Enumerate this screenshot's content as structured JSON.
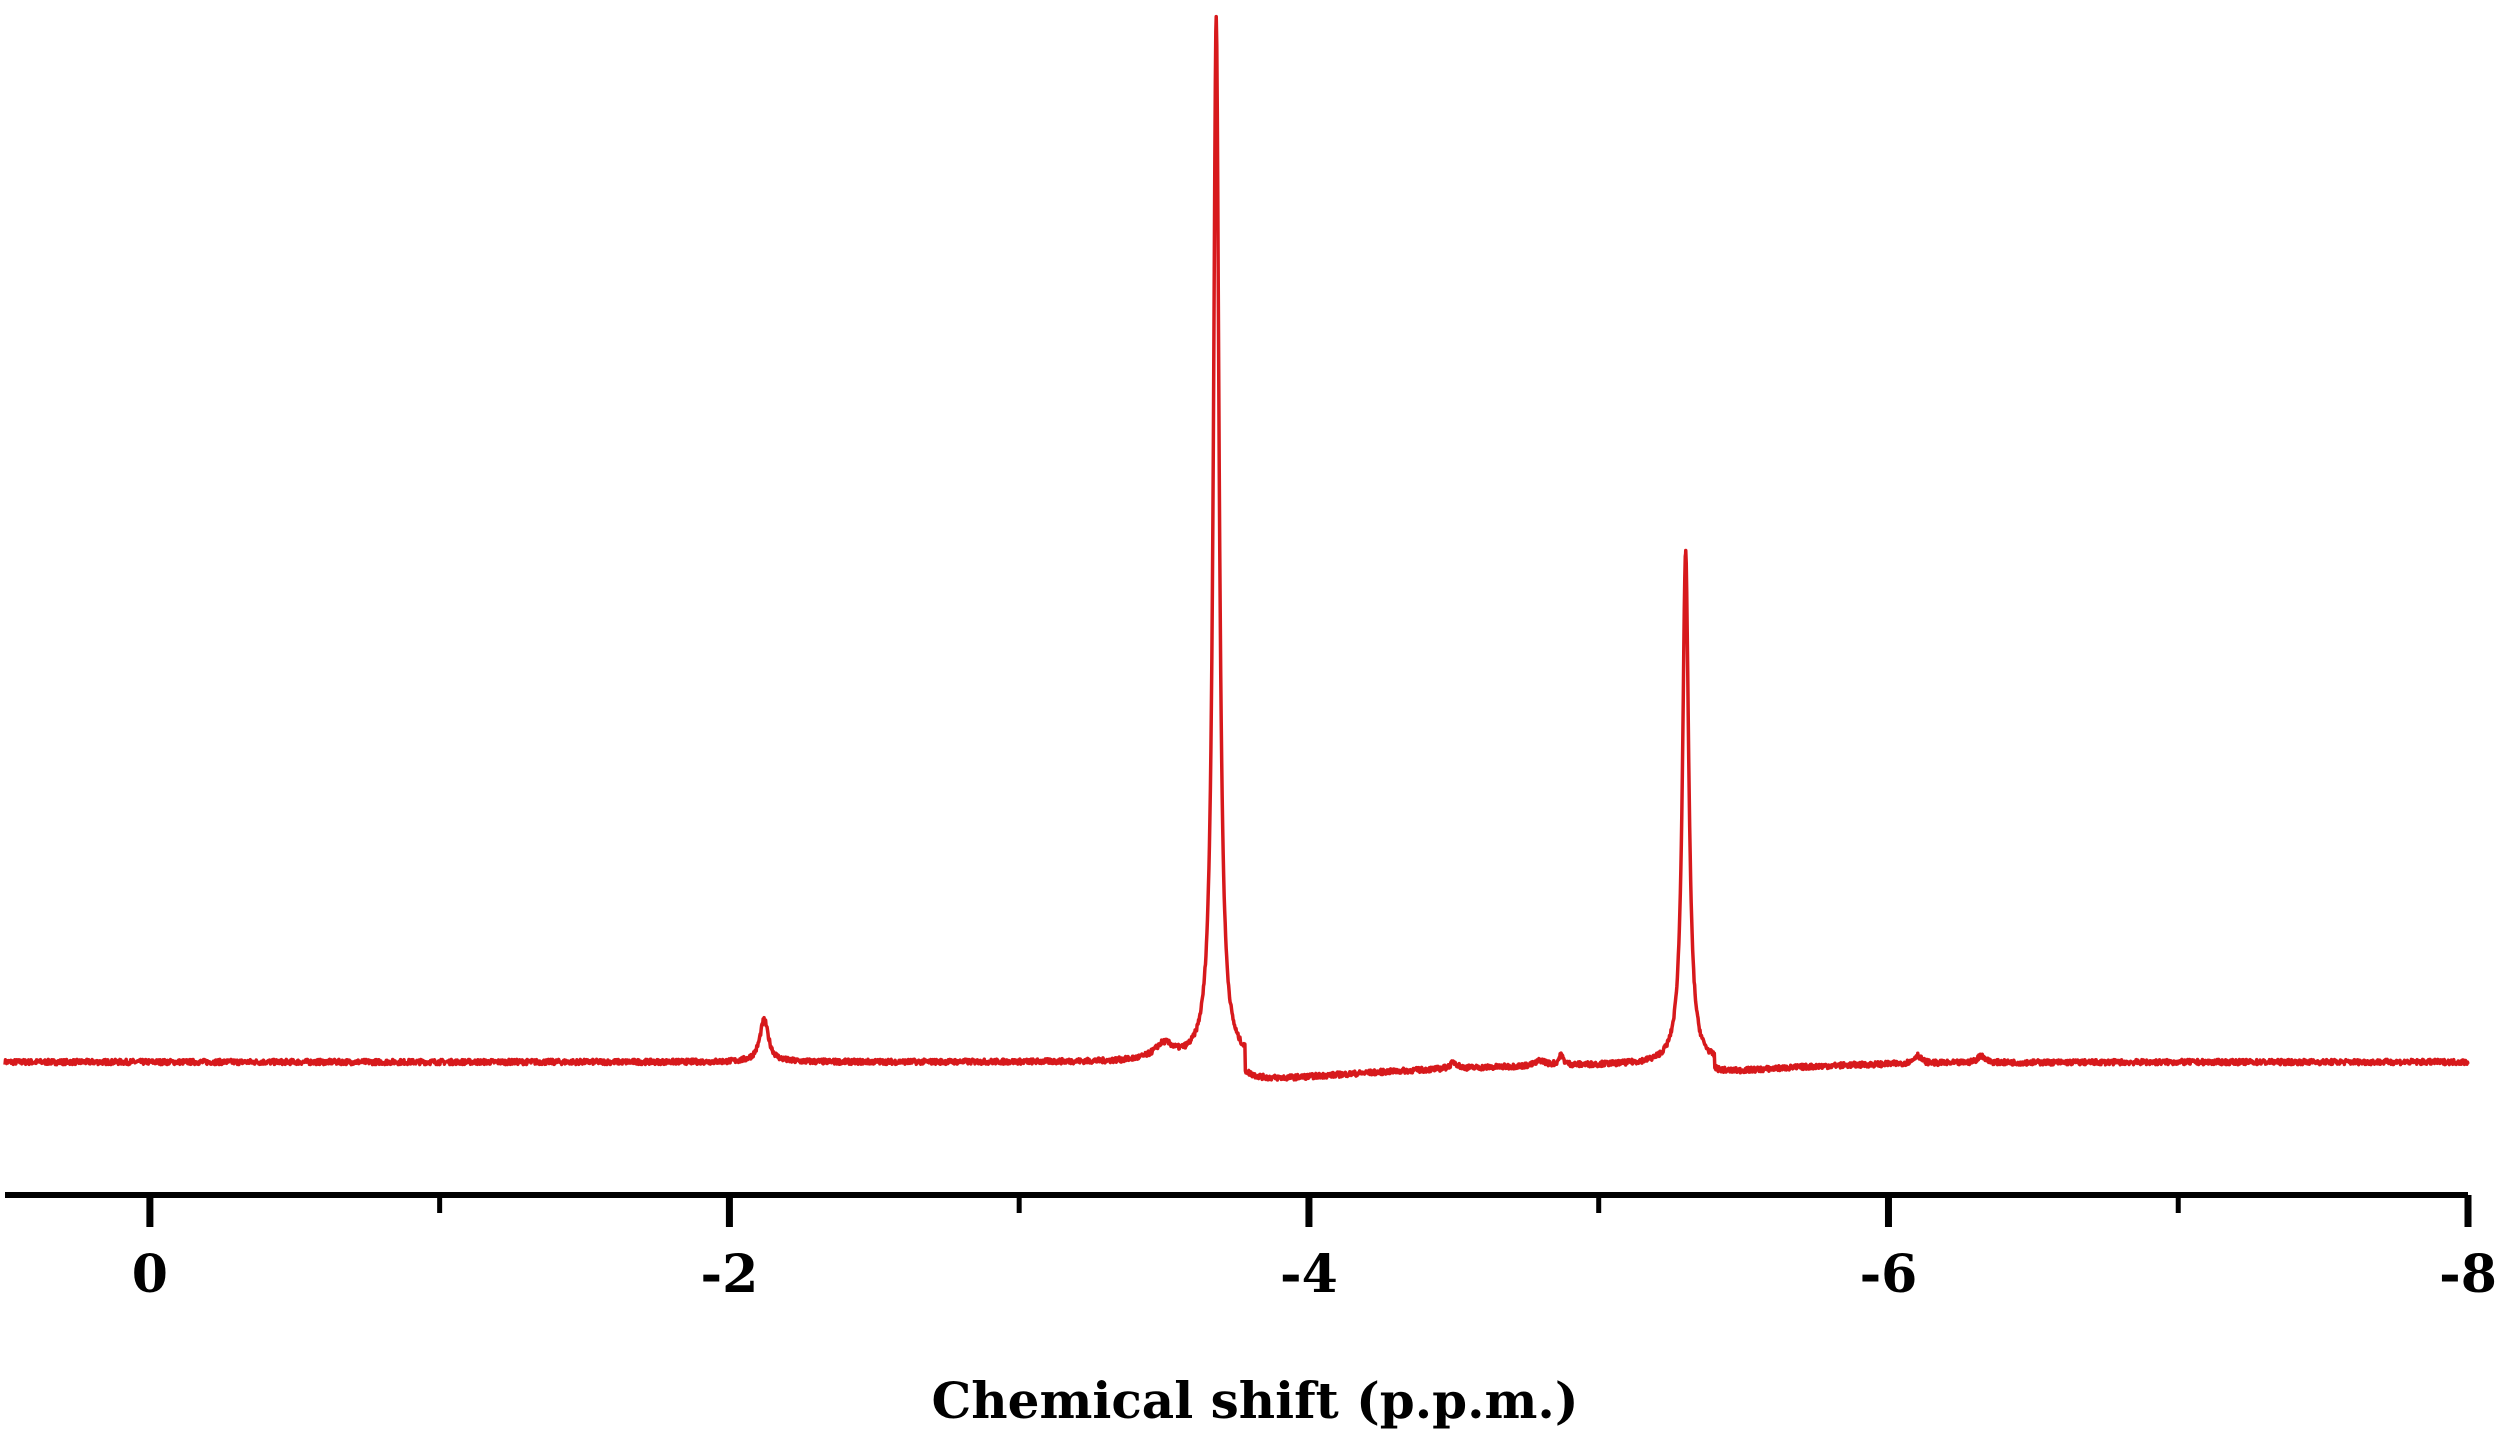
{
  "chart_data": {
    "type": "line",
    "xlabel": "Chemical shift (p.p.m.)",
    "ylabel": "",
    "title": "",
    "xlim": [
      0.5,
      -8
    ],
    "x_reversed": true,
    "ylim": [
      -0.2,
      1.02
    ],
    "y_axis_shown": false,
    "grid": false,
    "legend": "none",
    "major_ticks": [
      {
        "value": 0,
        "label": "0"
      },
      {
        "value": -2,
        "label": "-2"
      },
      {
        "value": -4,
        "label": "-4"
      },
      {
        "value": -6,
        "label": "-6"
      },
      {
        "value": -8,
        "label": "-8"
      }
    ],
    "minor_ticks": [
      -1,
      -3,
      -5,
      -7
    ],
    "series": [
      {
        "color": "#d7191c",
        "baseline": 0.0,
        "noise_amplitude": 0.0025,
        "peaks": [
          {
            "shift": -2.12,
            "height": 0.04,
            "width": 0.018
          },
          {
            "shift": -3.68,
            "height": 0.99,
            "width": 0.012
          },
          {
            "shift": -3.5,
            "height": 0.015,
            "width": 0.04
          },
          {
            "shift": -4.5,
            "height": 0.006,
            "width": 0.015
          },
          {
            "shift": -4.8,
            "height": 0.005,
            "width": 0.02
          },
          {
            "shift": -4.87,
            "height": 0.009,
            "width": 0.01
          },
          {
            "shift": -5.3,
            "height": 0.485,
            "width": 0.013
          },
          {
            "shift": -6.1,
            "height": 0.008,
            "width": 0.015
          },
          {
            "shift": -6.32,
            "height": 0.007,
            "width": 0.015
          }
        ],
        "dips": [
          {
            "shift": -3.78,
            "depth": -0.022,
            "decay": 0.6
          },
          {
            "shift": -5.4,
            "depth": -0.012,
            "decay": 0.3
          }
        ]
      }
    ]
  }
}
